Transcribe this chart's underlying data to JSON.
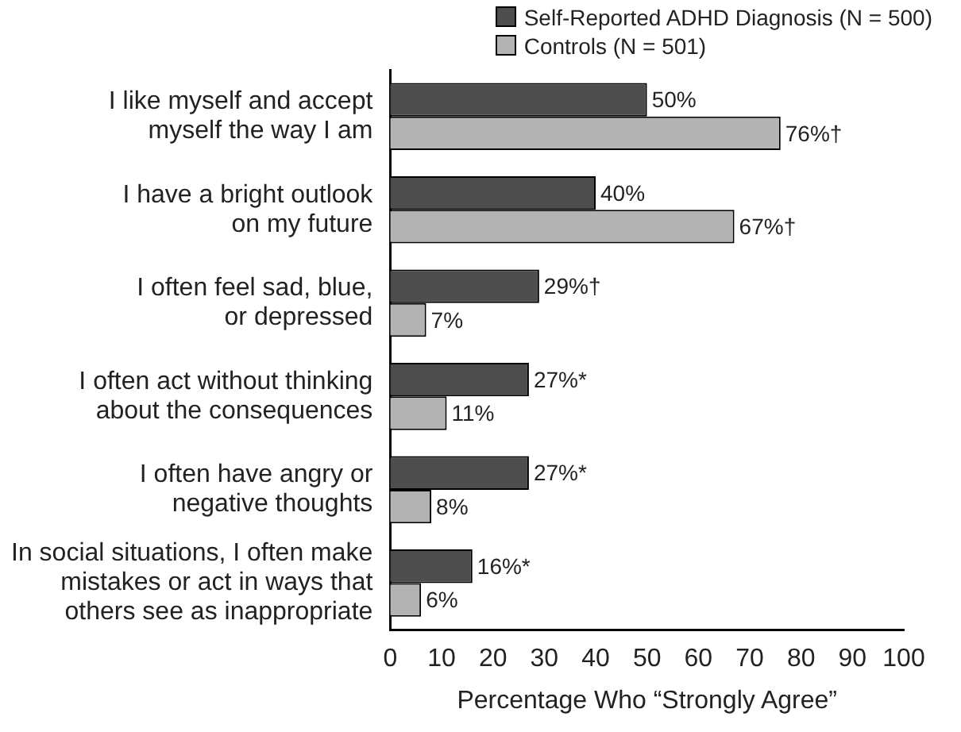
{
  "chart_data": {
    "type": "bar",
    "orientation": "horizontal",
    "categories": [
      "I like myself and accept\nmyself the way I am",
      "I have a bright outlook\non my future",
      "I often feel sad, blue,\nor depressed",
      "I often act without thinking\nabout the consequences",
      "I often have angry or\nnegative thoughts",
      "In social situations, I often make\nmistakes or act in ways that\nothers see as inappropriate"
    ],
    "series": [
      {
        "name": "Self-Reported ADHD Diagnosis (N = 500)",
        "color": "#4d4d4d",
        "values": [
          50,
          40,
          29,
          27,
          27,
          16
        ],
        "value_labels": [
          "50%",
          "40%",
          "29%†",
          "27%*",
          "27%*",
          "16%*"
        ]
      },
      {
        "name": "Controls (N = 501)",
        "color": "#b3b3b3",
        "values": [
          76,
          67,
          7,
          11,
          8,
          6
        ],
        "value_labels": [
          "76%†",
          "67%†",
          "7%",
          "11%",
          "8%",
          "6%"
        ]
      }
    ],
    "xlabel": "Percentage Who “Strongly Agree”",
    "xlim": [
      0,
      100
    ],
    "xticks": [
      0,
      10,
      20,
      30,
      40,
      50,
      60,
      70,
      80,
      90,
      100
    ],
    "grid": false,
    "legend": "top right"
  }
}
